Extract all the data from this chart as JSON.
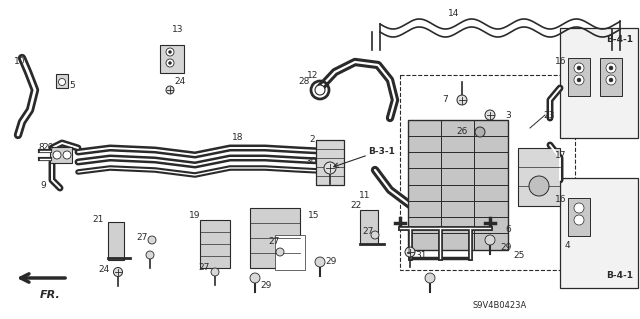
{
  "bg_color": "#ffffff",
  "fg_color": "#2a2a2a",
  "lw_tube": 2.2,
  "lw_thin": 0.8,
  "figsize": [
    6.4,
    3.19
  ],
  "dpi": 100,
  "diagram_id": "S9V4B0423A"
}
